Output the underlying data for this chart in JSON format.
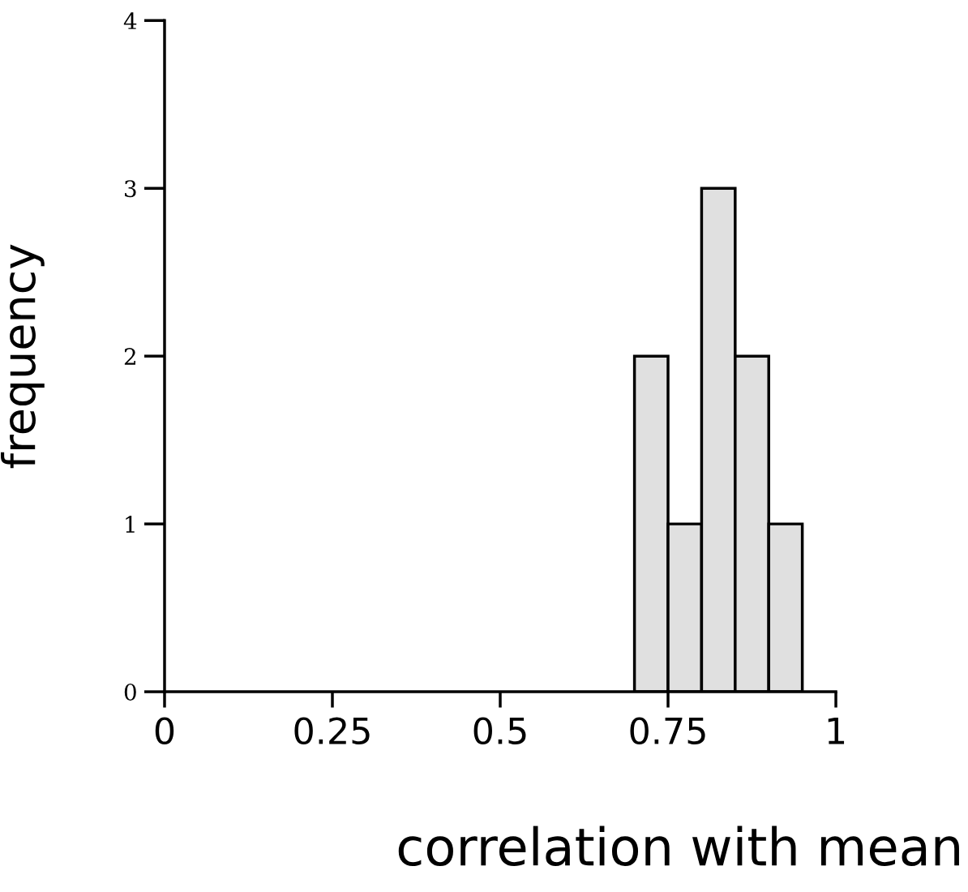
{
  "chart_data": {
    "type": "histogram",
    "xlabel": "correlation with mean",
    "ylabel": "frequency",
    "bins": [
      0.7,
      0.75,
      0.8,
      0.85,
      0.9,
      0.95
    ],
    "values": [
      2,
      1,
      3,
      2,
      1
    ],
    "color": "#e0e0e0",
    "xlim": [
      0,
      1
    ],
    "xticks": [
      0,
      0.25,
      0.5,
      0.75,
      1
    ],
    "ylim": [
      0,
      4
    ],
    "yticks": [
      0,
      1,
      2,
      3,
      4
    ],
    "grid": false
  }
}
